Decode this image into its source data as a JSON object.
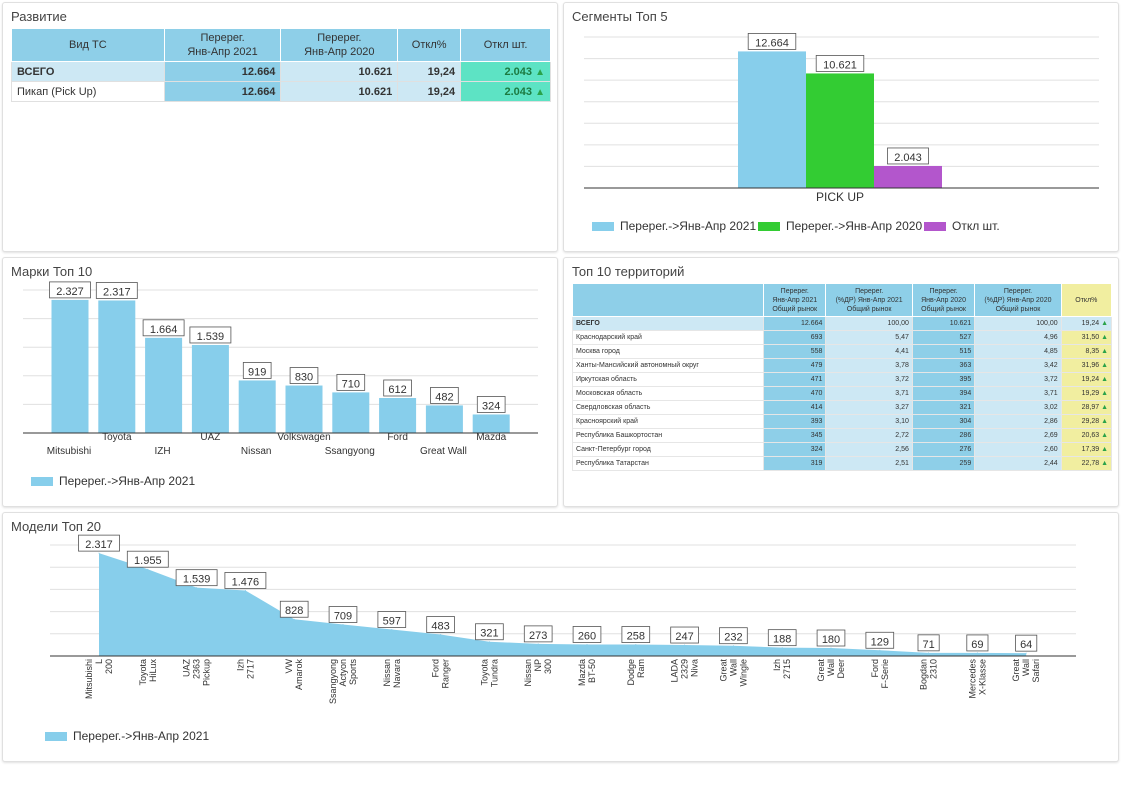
{
  "colors": {
    "blue": "#87ceeb",
    "green": "#33cc33",
    "purple": "#b356cc",
    "grid": "#e0e0e0",
    "yellow": "#f1eea0"
  },
  "development": {
    "title": "Развитие",
    "headers": [
      "Вид ТС",
      "Перерег.\nЯнв-Апр 2021",
      "Перерег.\nЯнв-Апр 2020",
      "Откл%",
      "Откл шт."
    ],
    "rows": [
      {
        "name": "ВСЕГО",
        "v2021": "12.664",
        "v2020": "10.621",
        "pct": "19,24",
        "diff": "2.043"
      },
      {
        "name": "Пикап (Pick Up)",
        "v2021": "12.664",
        "v2020": "10.621",
        "pct": "19,24",
        "diff": "2.043"
      }
    ]
  },
  "segments": {
    "title": "Сегменты Топ 5",
    "legend": [
      "Перерег.->Янв-Апр 2021",
      "Перерег.->Янв-Апр 2020",
      "Откл шт."
    ]
  },
  "brands": {
    "title": "Марки Топ 10",
    "legend": "Перерег.->Янв-Апр 2021"
  },
  "territories": {
    "title": "Топ 10 территорий",
    "headers": [
      "",
      "Перерег.\nЯнв-Апр 2021\nОбщий рынок",
      "Перерег.\n(%ДР) Янв-Апр 2021\nОбщий рынок",
      "Перерег.\nЯнв-Апр 2020\nОбщий рынок",
      "Перерег.\n(%ДР) Янв-Апр 2020\nОбщий рынок",
      "Откл%"
    ],
    "rows": [
      {
        "name": "ВСЕГО",
        "a": "12.664",
        "b": "100,00",
        "c": "10.621",
        "d": "100,00",
        "e": "19,24"
      },
      {
        "name": "Краснодарский край",
        "a": "693",
        "b": "5,47",
        "c": "527",
        "d": "4,96",
        "e": "31,50"
      },
      {
        "name": "Москва город",
        "a": "558",
        "b": "4,41",
        "c": "515",
        "d": "4,85",
        "e": "8,35"
      },
      {
        "name": "Ханты-Мансийский автономный округ",
        "a": "479",
        "b": "3,78",
        "c": "363",
        "d": "3,42",
        "e": "31,96"
      },
      {
        "name": "Иркутская область",
        "a": "471",
        "b": "3,72",
        "c": "395",
        "d": "3,72",
        "e": "19,24"
      },
      {
        "name": "Московская область",
        "a": "470",
        "b": "3,71",
        "c": "394",
        "d": "3,71",
        "e": "19,29"
      },
      {
        "name": "Свердловская область",
        "a": "414",
        "b": "3,27",
        "c": "321",
        "d": "3,02",
        "e": "28,97"
      },
      {
        "name": "Красноярский край",
        "a": "393",
        "b": "3,10",
        "c": "304",
        "d": "2,86",
        "e": "29,28"
      },
      {
        "name": "Республика Башкортостан",
        "a": "345",
        "b": "2,72",
        "c": "286",
        "d": "2,69",
        "e": "20,63"
      },
      {
        "name": "Санкт-Петербург город",
        "a": "324",
        "b": "2,56",
        "c": "276",
        "d": "2,60",
        "e": "17,39"
      },
      {
        "name": "Республика Татарстан",
        "a": "319",
        "b": "2,51",
        "c": "259",
        "d": "2,44",
        "e": "22,78"
      }
    ]
  },
  "models": {
    "title": "Модели Топ 20",
    "legend": "Перерег.->Янв-Апр 2021"
  },
  "chart_data": [
    {
      "type": "bar",
      "title": "Сегменты Топ 5",
      "categories": [
        "PICK UP"
      ],
      "series": [
        {
          "name": "Перерег.->Янв-Апр 2021",
          "values": [
            12664
          ],
          "labels": [
            "12.664"
          ]
        },
        {
          "name": "Перерег.->Янв-Апр 2020",
          "values": [
            10621
          ],
          "labels": [
            "10.621"
          ]
        },
        {
          "name": "Откл шт.",
          "values": [
            2043
          ],
          "labels": [
            "2.043"
          ]
        }
      ],
      "ylim": [
        0,
        14000
      ],
      "grid": true,
      "legend": "bottom"
    },
    {
      "type": "bar",
      "title": "Марки Топ 10",
      "categories": [
        "Mitsubishi",
        "Toyota",
        "IZH",
        "UAZ",
        "Nissan",
        "Volkswagen",
        "Ssangyong",
        "Ford",
        "Great Wall",
        "Mazda"
      ],
      "values": [
        2327,
        2317,
        1664,
        1539,
        919,
        830,
        710,
        612,
        482,
        324
      ],
      "labels": [
        "2.327",
        "2.317",
        "1.664",
        "1.539",
        "919",
        "830",
        "710",
        "612",
        "482",
        "324"
      ],
      "series_name": "Перерег.->Янв-Апр 2021",
      "ylim": [
        0,
        2500
      ],
      "grid": true,
      "legend": "bottom-left"
    },
    {
      "type": "area",
      "title": "Модели Топ 20",
      "categories": [
        "Mitsubishi L 200",
        "Toyota HiLux",
        "UAZ 2363 Pickup",
        "Izh 2717",
        "VW Amarok",
        "Ssangyong Actyon Sports",
        "Nissan Navara",
        "Ford Ranger",
        "Toyota Tundra",
        "Nissan NP 300",
        "Mazda BT-50",
        "Dodge Ram",
        "LADA 2329 Niva",
        "Great Wall Wingle",
        "Izh 2715",
        "Great Wall Deer",
        "Ford F-Serie",
        "Bogdan 2310",
        "Mercedes X-Klasse",
        "Great Wall Safari"
      ],
      "values": [
        2317,
        1955,
        1539,
        1476,
        828,
        709,
        597,
        483,
        321,
        273,
        260,
        258,
        247,
        232,
        188,
        180,
        129,
        71,
        69,
        64
      ],
      "labels": [
        "2.317",
        "1.955",
        "1.539",
        "1.476",
        "828",
        "709",
        "597",
        "483",
        "321",
        "273",
        "260",
        "258",
        "247",
        "232",
        "188",
        "180",
        "129",
        "71",
        "69",
        "64"
      ],
      "series_name": "Перерег.->Янв-Апр 2021",
      "ylim": [
        0,
        2500
      ],
      "grid": true,
      "legend": "bottom-left"
    }
  ]
}
